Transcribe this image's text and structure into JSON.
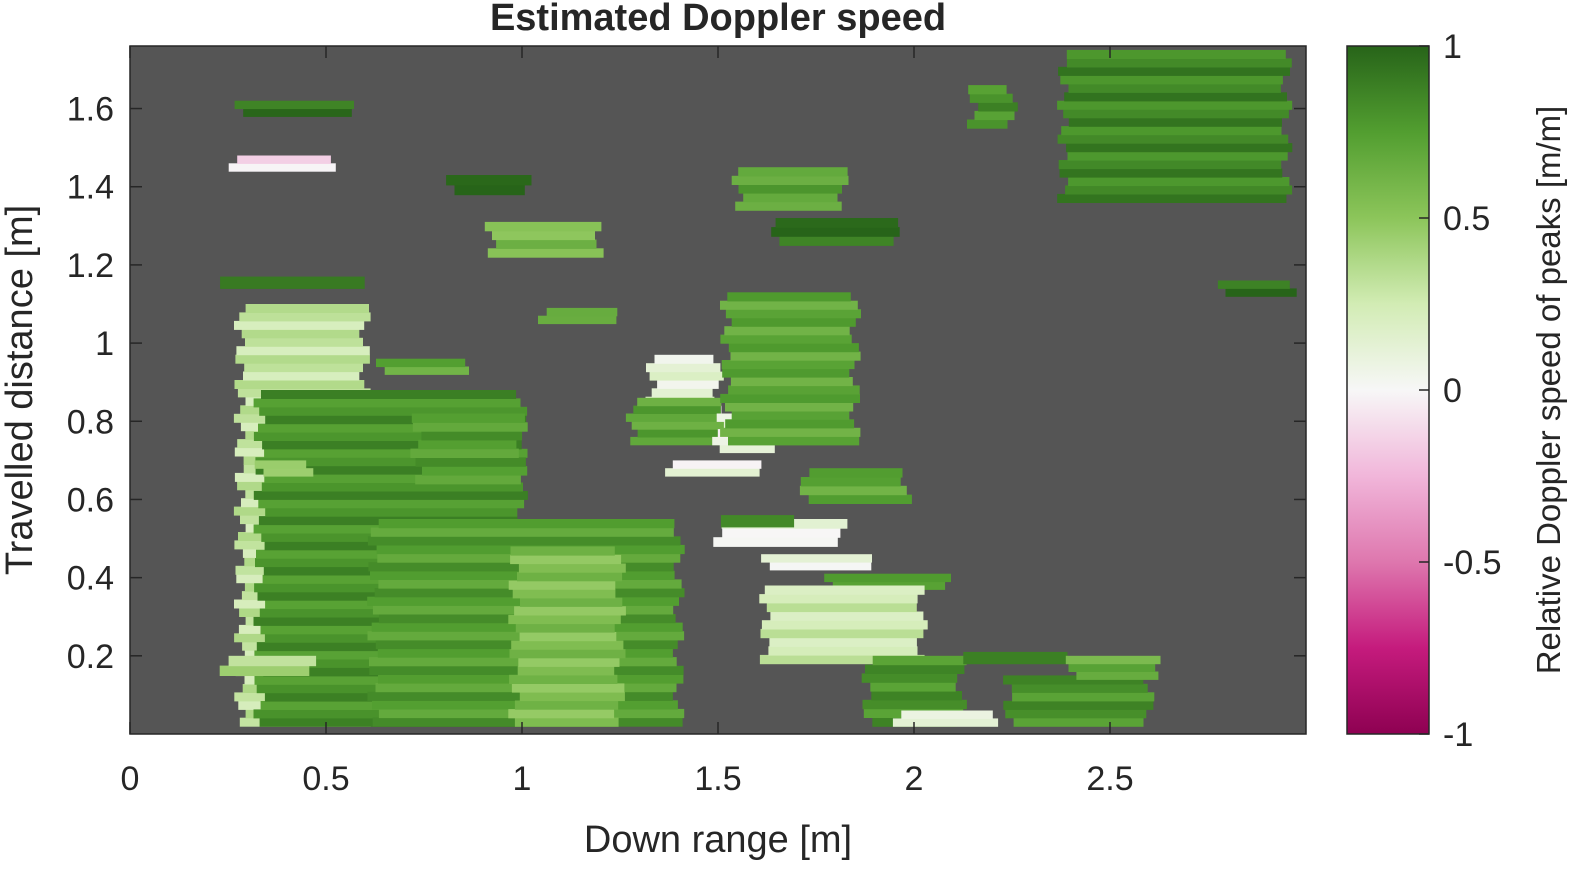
{
  "chart_data": {
    "type": "heatmap",
    "title": "Estimated Doppler speed",
    "xlabel": "Down range [m]",
    "ylabel": "Travelled distance [m]",
    "xlim": [
      0,
      3
    ],
    "ylim": [
      0,
      1.76
    ],
    "xticks": [
      0,
      0.5,
      1,
      1.5,
      2,
      2.5
    ],
    "xtick_labels": [
      "0",
      "0.5",
      "1",
      "1.5",
      "2",
      "2.5"
    ],
    "yticks": [
      0.2,
      0.4,
      0.6,
      0.8,
      1,
      1.2,
      1.4,
      1.6
    ],
    "ytick_labels": [
      "0.2",
      "0.4",
      "0.6",
      "0.8",
      "1",
      "1.2",
      "1.4",
      "1.6"
    ],
    "background_color": "#555555",
    "grid": false,
    "colorbar": {
      "label": "Relative Doppler speed of peaks [m/m]",
      "range": [
        -1,
        1
      ],
      "ticks": [
        -1,
        -0.5,
        0,
        0.5,
        1
      ],
      "tick_labels": [
        "-1",
        "-0.5",
        "0",
        "0.5",
        "1"
      ],
      "colormap": "PiYG",
      "stops": [
        {
          "v": -1.0,
          "color": "#8e0152"
        },
        {
          "v": -0.75,
          "color": "#c51b7d"
        },
        {
          "v": -0.5,
          "color": "#de77ae"
        },
        {
          "v": -0.25,
          "color": "#f1b6da"
        },
        {
          "v": 0.0,
          "color": "#f7f7f7"
        },
        {
          "v": 0.25,
          "color": "#d2ecb4"
        },
        {
          "v": 0.5,
          "color": "#8cc55a"
        },
        {
          "v": 0.75,
          "color": "#529e30"
        },
        {
          "v": 1.0,
          "color": "#276419"
        }
      ]
    },
    "regions": [
      {
        "x0": 0.28,
        "x1": 0.6,
        "y0": 0.02,
        "y1": 1.1,
        "skew": 0.0,
        "v": 0.3
      },
      {
        "x0": 0.33,
        "x1": 1.0,
        "y0": 0.02,
        "y1": 0.88,
        "skew": 0.0,
        "v": 0.8
      },
      {
        "x0": 0.62,
        "x1": 1.4,
        "y0": 0.02,
        "y1": 0.55,
        "skew": 0.0,
        "v": 0.75
      },
      {
        "x0": 0.98,
        "x1": 1.25,
        "y0": 0.02,
        "y1": 0.48,
        "skew": 0.0,
        "v": 0.55
      },
      {
        "x0": 0.73,
        "x1": 1.0,
        "y0": 0.64,
        "y1": 0.82,
        "skew": 0.0,
        "v": 0.75
      },
      {
        "x0": 1.33,
        "x1": 1.5,
        "y0": 0.82,
        "y1": 0.97,
        "skew": 0.0,
        "v": 0.12
      },
      {
        "x0": 1.28,
        "x1": 1.52,
        "y0": 0.74,
        "y1": 0.86,
        "skew": 0.0,
        "v": 0.7
      },
      {
        "x0": 1.5,
        "x1": 1.63,
        "y0": 0.72,
        "y1": 0.82,
        "skew": 0.0,
        "v": 0.05
      },
      {
        "x0": 1.37,
        "x1": 1.62,
        "y0": 0.66,
        "y1": 0.7,
        "skew": 0.0,
        "v": 0.05
      },
      {
        "x0": 1.52,
        "x1": 1.85,
        "y0": 0.74,
        "y1": 1.13,
        "skew": 0.0,
        "v": 0.7
      },
      {
        "x0": 1.55,
        "x1": 1.82,
        "y0": 1.34,
        "y1": 1.45,
        "skew": 0.0,
        "v": 0.7
      },
      {
        "x0": 1.65,
        "x1": 1.95,
        "y0": 1.25,
        "y1": 1.32,
        "skew": 0.0,
        "v": 0.95
      },
      {
        "x0": 0.92,
        "x1": 1.2,
        "y0": 1.22,
        "y1": 1.31,
        "skew": 0.0,
        "v": 0.55
      },
      {
        "x0": 0.82,
        "x1": 1.02,
        "y0": 1.38,
        "y1": 1.43,
        "skew": 0.0,
        "v": 0.95
      },
      {
        "x0": 0.26,
        "x1": 0.51,
        "y0": 1.44,
        "y1": 1.48,
        "skew": 0.0,
        "v": -0.1
      },
      {
        "x0": 0.28,
        "x1": 0.58,
        "y0": 1.58,
        "y1": 1.62,
        "skew": 0.0,
        "v": 0.95
      },
      {
        "x0": 1.05,
        "x1": 1.23,
        "y0": 1.05,
        "y1": 1.09,
        "skew": 0.0,
        "v": 0.7
      },
      {
        "x0": 0.64,
        "x1": 0.87,
        "y0": 0.92,
        "y1": 0.96,
        "skew": 0.0,
        "v": 0.7
      },
      {
        "x0": 0.24,
        "x1": 0.6,
        "y0": 1.14,
        "y1": 1.17,
        "skew": 0.0,
        "v": 0.95
      },
      {
        "x0": 0.33,
        "x1": 0.46,
        "y0": 0.66,
        "y1": 0.7,
        "skew": 0.0,
        "v": 0.4
      },
      {
        "x0": 0.24,
        "x1": 0.47,
        "y0": 0.15,
        "y1": 0.2,
        "skew": 0.0,
        "v": 0.35
      },
      {
        "x0": 1.72,
        "x1": 1.98,
        "y0": 0.59,
        "y1": 0.68,
        "skew": 0.0,
        "v": 0.7
      },
      {
        "x0": 1.5,
        "x1": 1.82,
        "y0": 0.48,
        "y1": 0.55,
        "skew": 0.0,
        "v": 0.05
      },
      {
        "x0": 1.62,
        "x1": 1.88,
        "y0": 0.42,
        "y1": 0.46,
        "skew": 0.0,
        "v": 0.1
      },
      {
        "x0": 1.52,
        "x1": 1.7,
        "y0": 0.53,
        "y1": 0.56,
        "skew": 0.0,
        "v": 0.9
      },
      {
        "x0": 1.78,
        "x1": 2.08,
        "y0": 0.37,
        "y1": 0.41,
        "skew": 0.0,
        "v": 0.7
      },
      {
        "x0": 1.62,
        "x1": 2.02,
        "y0": 0.18,
        "y1": 0.38,
        "skew": 0.0,
        "v": 0.25
      },
      {
        "x0": 1.88,
        "x1": 2.12,
        "y0": 0.02,
        "y1": 0.2,
        "skew": 0.0,
        "v": 0.8
      },
      {
        "x0": 1.96,
        "x1": 2.2,
        "y0": 0.02,
        "y1": 0.06,
        "skew": 0.0,
        "v": 0.15
      },
      {
        "x0": 2.24,
        "x1": 2.6,
        "y0": 0.02,
        "y1": 0.15,
        "skew": 0.0,
        "v": 0.8
      },
      {
        "x0": 2.14,
        "x1": 2.38,
        "y0": 0.18,
        "y1": 0.21,
        "skew": 0.0,
        "v": 0.95
      },
      {
        "x0": 2.4,
        "x1": 2.63,
        "y0": 0.14,
        "y1": 0.2,
        "skew": 0.0,
        "v": 0.65
      },
      {
        "x0": 2.38,
        "x1": 2.95,
        "y0": 1.36,
        "y1": 1.75,
        "skew": 0.0,
        "v": 0.85
      },
      {
        "x0": 2.78,
        "x1": 2.97,
        "y0": 1.12,
        "y1": 1.16,
        "skew": 0.0,
        "v": 0.95
      },
      {
        "x0": 2.15,
        "x1": 2.25,
        "y0": 1.55,
        "y1": 1.66,
        "skew": 0.0,
        "v": 0.8
      }
    ]
  }
}
